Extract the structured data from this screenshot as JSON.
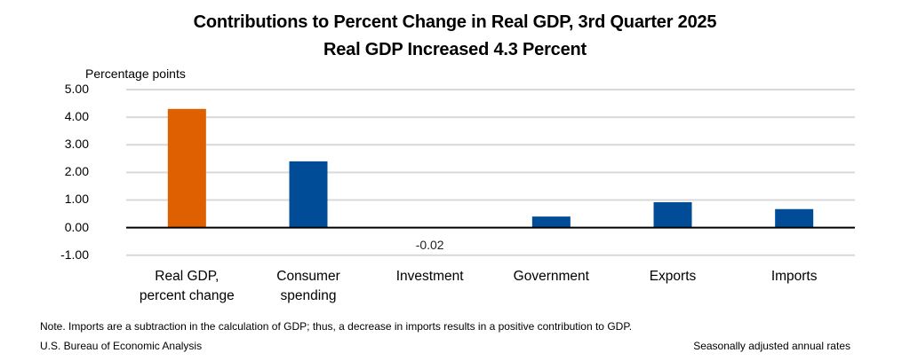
{
  "chart_data": {
    "type": "bar",
    "title": "Contributions to Percent Change in Real GDP, 3rd Quarter 2025",
    "subtitle": "Real GDP Increased 4.3 Percent",
    "ylabel": "Percentage points",
    "xlabel": "",
    "ylim": [
      -1.0,
      5.0
    ],
    "yticks": [
      "5.00",
      "4.00",
      "3.00",
      "2.00",
      "1.00",
      "0.00",
      "-1.00"
    ],
    "ytick_values": [
      5,
      4,
      3,
      2,
      1,
      0,
      -1
    ],
    "grid": true,
    "categories": [
      "Real GDP,\npercent change",
      "Consumer\nspending",
      "Investment",
      "Government",
      "Exports",
      "Imports"
    ],
    "category_lines": [
      [
        "Real GDP,",
        "percent change"
      ],
      [
        "Consumer",
        "spending"
      ],
      [
        "Investment"
      ],
      [
        "Government"
      ],
      [
        "Exports"
      ],
      [
        "Imports"
      ]
    ],
    "values": [
      4.3,
      2.4,
      -0.02,
      0.4,
      0.92,
      0.67
    ],
    "colors": [
      "#DE6000",
      "#004C97",
      "#004C97",
      "#004C97",
      "#004C97",
      "#004C97"
    ],
    "data_labels": [
      null,
      null,
      "-0.02",
      null,
      null,
      null
    ],
    "legend": "none"
  },
  "footer": {
    "note": "Note. Imports are a subtraction in the calculation of GDP; thus, a decrease in imports results in a positive contribution to GDP.",
    "source": "U.S. Bureau of Economic Analysis",
    "rates": "Seasonally adjusted annual rates"
  }
}
